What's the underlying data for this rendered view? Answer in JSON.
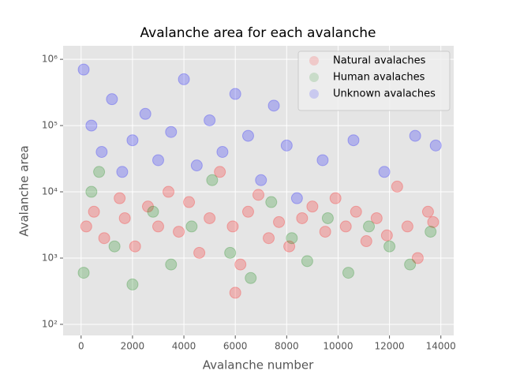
{
  "chart_data": {
    "type": "scatter",
    "title": "Avalanche area for each avalanche",
    "x_label": "Avalanche number",
    "y_label": "Avalanche area",
    "xlim": [
      -700,
      14500
    ],
    "ylim": [
      68,
      1600000
    ],
    "log_y": true,
    "grid": true,
    "legend": "upper right",
    "xticks": [
      0,
      2000,
      4000,
      6000,
      8000,
      10000,
      12000,
      14000
    ],
    "yticks": [
      {
        "value": 100,
        "label": "10²"
      },
      {
        "value": 1000,
        "label": "10³"
      },
      {
        "value": 10000,
        "label": "10⁴"
      },
      {
        "value": 100000,
        "label": "10⁵"
      },
      {
        "value": 1000000,
        "label": "10⁶"
      }
    ],
    "series": [
      {
        "name": "Natural avalaches",
        "color": "#ff0000",
        "x": [
          200,
          500,
          900,
          1500,
          1700,
          2100,
          2600,
          3000,
          3400,
          3800,
          4200,
          4600,
          5000,
          5400,
          5900,
          6200,
          6500,
          6900,
          7300,
          7700,
          8100,
          8600,
          9000,
          9500,
          9900,
          10300,
          10700,
          11100,
          11500,
          11900,
          12300,
          12700,
          13100,
          13500,
          13700,
          6000
        ],
        "values": [
          3000,
          5000,
          2000,
          8000,
          4000,
          1500,
          6000,
          3000,
          10000,
          2500,
          7000,
          1200,
          4000,
          20000,
          3000,
          800,
          5000,
          9000,
          2000,
          3500,
          1500,
          4000,
          6000,
          2500,
          8000,
          3000,
          5000,
          1800,
          4000,
          2200,
          12000,
          3000,
          1000,
          5000,
          3500,
          300
        ]
      },
      {
        "name": "Human avalaches",
        "color": "#008000",
        "x": [
          100,
          700,
          1300,
          2000,
          2800,
          3500,
          4300,
          5100,
          5800,
          6600,
          7400,
          8200,
          8800,
          9600,
          10400,
          11200,
          12000,
          12800,
          13600,
          400
        ],
        "values": [
          600,
          20000,
          1500,
          400,
          5000,
          800,
          3000,
          15000,
          1200,
          500,
          7000,
          2000,
          900,
          4000,
          600,
          3000,
          1500,
          800,
          2500,
          10000
        ]
      },
      {
        "name": "Unknown avalaches",
        "color": "#0000ff",
        "x": [
          100,
          400,
          800,
          1200,
          1600,
          2000,
          2500,
          3000,
          3500,
          4000,
          4500,
          5000,
          5500,
          6000,
          6500,
          7000,
          7500,
          8000,
          8400,
          9400,
          10600,
          11800,
          13000,
          13800
        ],
        "values": [
          700000,
          100000,
          40000,
          250000,
          20000,
          60000,
          150000,
          30000,
          80000,
          500000,
          25000,
          120000,
          40000,
          300000,
          70000,
          15000,
          200000,
          50000,
          8000,
          30000,
          60000,
          20000,
          70000,
          50000
        ]
      }
    ]
  }
}
